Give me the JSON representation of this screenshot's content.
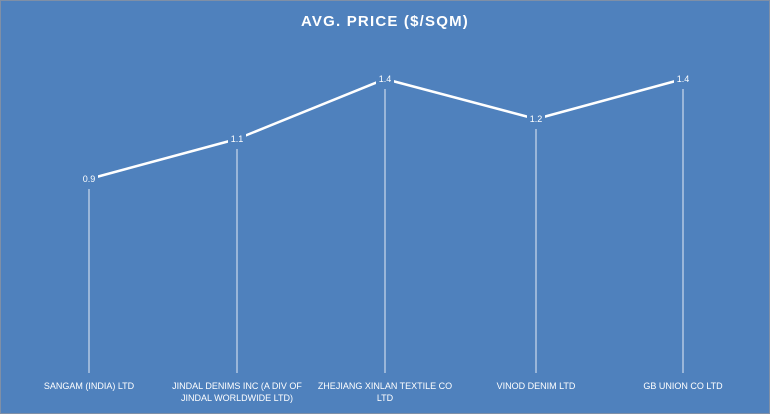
{
  "chart_data": {
    "type": "line",
    "title": "AVG. PRICE   ($/SQM)",
    "categories": [
      [
        "SANGAM (INDIA) LTD"
      ],
      [
        "JINDAL DENIMS INC (A DIV OF",
        "JINDAL WORLDWIDE LTD)"
      ],
      [
        "ZHEJIANG XINLAN TEXTILE CO",
        "LTD"
      ],
      [
        "VINOD DENIM LTD"
      ],
      [
        "GB UNION CO LTD"
      ]
    ],
    "values": [
      0.9,
      1.1,
      1.4,
      1.2,
      1.4
    ],
    "data_labels": [
      "0.9",
      "1.1",
      "1.4",
      "1.2",
      "1.4"
    ],
    "drop_lines": true,
    "grid": false,
    "legend": "none",
    "colors": {
      "background": "#4f81bd",
      "line": "#ffffff",
      "text": "#ffffff"
    }
  }
}
